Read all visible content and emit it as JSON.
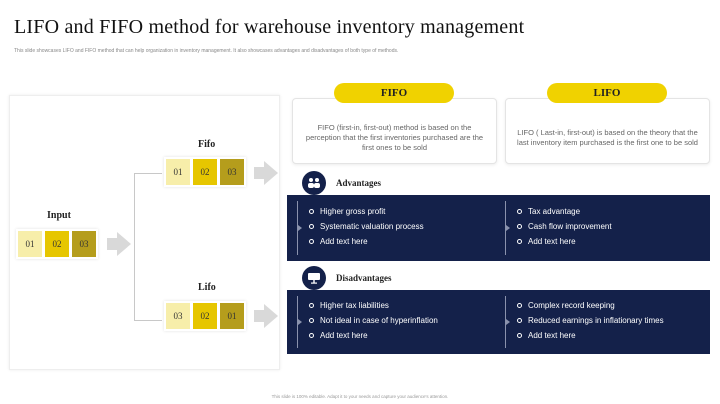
{
  "title": "LIFO and FIFO method for warehouse inventory management",
  "subtitle": "This slide showcases LIFO and FIFO method that can help organization in inventory management. It also showcases advantages and disadvantages of both type of methods.",
  "input": {
    "label": "Input",
    "boxes": [
      "01",
      "02",
      "03"
    ]
  },
  "fifo_flow": {
    "label": "Fifo",
    "boxes": [
      "01",
      "02",
      "03"
    ]
  },
  "lifo_flow": {
    "label": "Lifo",
    "boxes": [
      "03",
      "02",
      "01"
    ]
  },
  "fifo": {
    "pill": "FIFO",
    "description": "FIFO (first-in, first-out) method is based on the perception that the first inventories purchased are the first ones to be sold"
  },
  "lifo": {
    "pill": "LIFO",
    "description": "LIFO ( Last-in, first-out) is based on the theory that the last inventory item purchased is the first one to be sold"
  },
  "advantages": {
    "title": "Advantages",
    "fifo_items": [
      "Higher gross profit",
      "Systematic valuation process",
      "Add text here"
    ],
    "lifo_items": [
      "Tax advantage",
      "Cash flow improvement",
      "Add text here"
    ]
  },
  "disadvantages": {
    "title": "Disadvantages",
    "fifo_items": [
      "Higher tax liabilities",
      "Not ideal in case of hyperinflation",
      "Add text here"
    ],
    "lifo_items": [
      "Complex record keeping",
      "Reduced earnings in inflationary times",
      "Add text here"
    ]
  },
  "footer": "This slide is 100% editable. Adapt it to your needs and capture your audience's attention.",
  "colors": {
    "yellow": "#f0d200",
    "navy": "#14214a",
    "box_light": "#f7eeaa",
    "box_mid": "#e6c600",
    "box_dark": "#b59d1c"
  },
  "icons": {
    "advantages": "people-group-icon",
    "disadvantages": "presentation-board-icon"
  }
}
